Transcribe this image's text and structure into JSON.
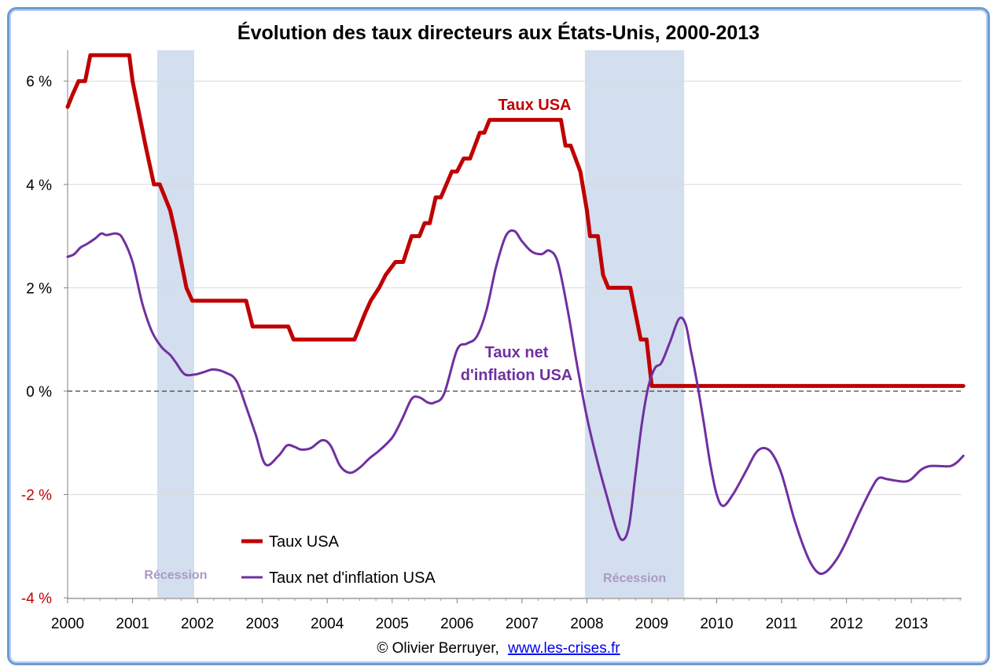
{
  "chart_data": {
    "type": "line",
    "title": "Évolution des taux directeurs aux États-Unis, 2000-2013",
    "xlabel": "",
    "ylabel": "",
    "x_ticks": [
      "2000",
      "2001",
      "2002",
      "2003",
      "2004",
      "2005",
      "2006",
      "2007",
      "2008",
      "2009",
      "2010",
      "2011",
      "2012",
      "2013"
    ],
    "xlim": [
      2000,
      2013.8
    ],
    "ylim": [
      -4,
      6.5
    ],
    "y_ticks": [
      {
        "value": 6,
        "label": "6 %"
      },
      {
        "value": 4,
        "label": "4 %"
      },
      {
        "value": 2,
        "label": "2 %"
      },
      {
        "value": 0,
        "label": "0 %"
      },
      {
        "value": -2,
        "label": "-2 %"
      },
      {
        "value": -4,
        "label": "-4 %"
      }
    ],
    "grid": true,
    "zero_line": "dashed",
    "legend_placement": "bottom-left",
    "recessions": [
      {
        "start": 2001.38,
        "end": 2001.95,
        "label": "Récession"
      },
      {
        "start": 2007.97,
        "end": 2009.5,
        "label": "Récession"
      }
    ],
    "annotations": [
      {
        "text": "Taux USA",
        "series": "Taux USA"
      },
      {
        "text": "Taux net d'inflation USA",
        "lines": [
          "Taux net",
          "d'inflation USA"
        ],
        "series": "Taux net d'inflation USA"
      }
    ],
    "series": [
      {
        "name": "Taux USA",
        "color": "#c00000",
        "points": [
          [
            2000.0,
            5.5
          ],
          [
            2000.08,
            5.75
          ],
          [
            2000.17,
            6.0
          ],
          [
            2000.27,
            6.0
          ],
          [
            2000.35,
            6.5
          ],
          [
            2000.95,
            6.5
          ],
          [
            2001.0,
            6.0
          ],
          [
            2001.08,
            5.5
          ],
          [
            2001.2,
            4.75
          ],
          [
            2001.33,
            4.0
          ],
          [
            2001.42,
            4.0
          ],
          [
            2001.58,
            3.5
          ],
          [
            2001.67,
            3.0
          ],
          [
            2001.75,
            2.5
          ],
          [
            2001.83,
            2.0
          ],
          [
            2001.92,
            1.75
          ],
          [
            2002.75,
            1.75
          ],
          [
            2002.85,
            1.25
          ],
          [
            2003.4,
            1.25
          ],
          [
            2003.48,
            1.0
          ],
          [
            2004.42,
            1.0
          ],
          [
            2004.5,
            1.25
          ],
          [
            2004.58,
            1.5
          ],
          [
            2004.67,
            1.75
          ],
          [
            2004.8,
            2.0
          ],
          [
            2004.9,
            2.25
          ],
          [
            2005.05,
            2.5
          ],
          [
            2005.17,
            2.5
          ],
          [
            2005.3,
            3.0
          ],
          [
            2005.42,
            3.0
          ],
          [
            2005.5,
            3.25
          ],
          [
            2005.58,
            3.25
          ],
          [
            2005.67,
            3.75
          ],
          [
            2005.75,
            3.75
          ],
          [
            2005.92,
            4.25
          ],
          [
            2006.0,
            4.25
          ],
          [
            2006.1,
            4.5
          ],
          [
            2006.2,
            4.5
          ],
          [
            2006.35,
            5.0
          ],
          [
            2006.42,
            5.0
          ],
          [
            2006.5,
            5.25
          ],
          [
            2007.6,
            5.25
          ],
          [
            2007.67,
            4.75
          ],
          [
            2007.75,
            4.75
          ],
          [
            2007.9,
            4.25
          ],
          [
            2008.0,
            3.5
          ],
          [
            2008.05,
            3.0
          ],
          [
            2008.17,
            3.0
          ],
          [
            2008.25,
            2.25
          ],
          [
            2008.33,
            2.0
          ],
          [
            2008.67,
            2.0
          ],
          [
            2008.75,
            1.5
          ],
          [
            2008.83,
            1.0
          ],
          [
            2008.92,
            1.0
          ],
          [
            2009.0,
            0.1
          ],
          [
            2013.8,
            0.1
          ]
        ]
      },
      {
        "name": "Taux net d'inflation USA",
        "color": "#7030a0",
        "points": [
          [
            2000.0,
            2.6
          ],
          [
            2000.1,
            2.65
          ],
          [
            2000.2,
            2.78
          ],
          [
            2000.3,
            2.85
          ],
          [
            2000.42,
            2.95
          ],
          [
            2000.52,
            3.05
          ],
          [
            2000.6,
            3.02
          ],
          [
            2000.75,
            3.05
          ],
          [
            2000.85,
            2.95
          ],
          [
            2001.0,
            2.5
          ],
          [
            2001.15,
            1.7
          ],
          [
            2001.3,
            1.15
          ],
          [
            2001.45,
            0.85
          ],
          [
            2001.58,
            0.7
          ],
          [
            2001.67,
            0.55
          ],
          [
            2001.8,
            0.33
          ],
          [
            2001.95,
            0.32
          ],
          [
            2002.1,
            0.37
          ],
          [
            2002.25,
            0.42
          ],
          [
            2002.45,
            0.35
          ],
          [
            2002.6,
            0.2
          ],
          [
            2002.75,
            -0.3
          ],
          [
            2002.9,
            -0.85
          ],
          [
            2003.05,
            -1.42
          ],
          [
            2003.25,
            -1.25
          ],
          [
            2003.38,
            -1.05
          ],
          [
            2003.5,
            -1.08
          ],
          [
            2003.6,
            -1.13
          ],
          [
            2003.75,
            -1.1
          ],
          [
            2003.92,
            -0.95
          ],
          [
            2004.05,
            -1.05
          ],
          [
            2004.2,
            -1.45
          ],
          [
            2004.35,
            -1.58
          ],
          [
            2004.5,
            -1.48
          ],
          [
            2004.65,
            -1.3
          ],
          [
            2004.8,
            -1.15
          ],
          [
            2005.0,
            -0.9
          ],
          [
            2005.15,
            -0.55
          ],
          [
            2005.3,
            -0.15
          ],
          [
            2005.42,
            -0.12
          ],
          [
            2005.55,
            -0.22
          ],
          [
            2005.65,
            -0.22
          ],
          [
            2005.8,
            -0.05
          ],
          [
            2006.0,
            0.8
          ],
          [
            2006.15,
            0.92
          ],
          [
            2006.3,
            1.05
          ],
          [
            2006.45,
            1.55
          ],
          [
            2006.6,
            2.4
          ],
          [
            2006.75,
            3.0
          ],
          [
            2006.88,
            3.1
          ],
          [
            2007.0,
            2.9
          ],
          [
            2007.15,
            2.7
          ],
          [
            2007.3,
            2.65
          ],
          [
            2007.42,
            2.72
          ],
          [
            2007.55,
            2.5
          ],
          [
            2007.7,
            1.6
          ],
          [
            2007.85,
            0.5
          ],
          [
            2008.0,
            -0.5
          ],
          [
            2008.15,
            -1.3
          ],
          [
            2008.3,
            -2.0
          ],
          [
            2008.45,
            -2.65
          ],
          [
            2008.55,
            -2.88
          ],
          [
            2008.65,
            -2.6
          ],
          [
            2008.75,
            -1.6
          ],
          [
            2008.85,
            -0.6
          ],
          [
            2008.95,
            0.1
          ],
          [
            2009.05,
            0.45
          ],
          [
            2009.15,
            0.55
          ],
          [
            2009.28,
            0.95
          ],
          [
            2009.42,
            1.4
          ],
          [
            2009.52,
            1.3
          ],
          [
            2009.6,
            0.8
          ],
          [
            2009.7,
            0.15
          ],
          [
            2009.8,
            -0.6
          ],
          [
            2009.9,
            -1.4
          ],
          [
            2010.0,
            -2.0
          ],
          [
            2010.1,
            -2.22
          ],
          [
            2010.25,
            -2.0
          ],
          [
            2010.45,
            -1.55
          ],
          [
            2010.6,
            -1.2
          ],
          [
            2010.72,
            -1.1
          ],
          [
            2010.85,
            -1.2
          ],
          [
            2011.0,
            -1.6
          ],
          [
            2011.2,
            -2.5
          ],
          [
            2011.4,
            -3.2
          ],
          [
            2011.55,
            -3.5
          ],
          [
            2011.68,
            -3.5
          ],
          [
            2011.85,
            -3.25
          ],
          [
            2012.0,
            -2.9
          ],
          [
            2012.2,
            -2.35
          ],
          [
            2012.4,
            -1.85
          ],
          [
            2012.5,
            -1.68
          ],
          [
            2012.62,
            -1.7
          ],
          [
            2012.75,
            -1.73
          ],
          [
            2012.9,
            -1.75
          ],
          [
            2013.0,
            -1.7
          ],
          [
            2013.15,
            -1.52
          ],
          [
            2013.28,
            -1.45
          ],
          [
            2013.45,
            -1.45
          ],
          [
            2013.6,
            -1.45
          ],
          [
            2013.7,
            -1.38
          ],
          [
            2013.8,
            -1.25
          ]
        ]
      }
    ]
  },
  "credit": {
    "author": "© Olivier Berruyer,",
    "link_text": "www.les-crises.fr"
  }
}
